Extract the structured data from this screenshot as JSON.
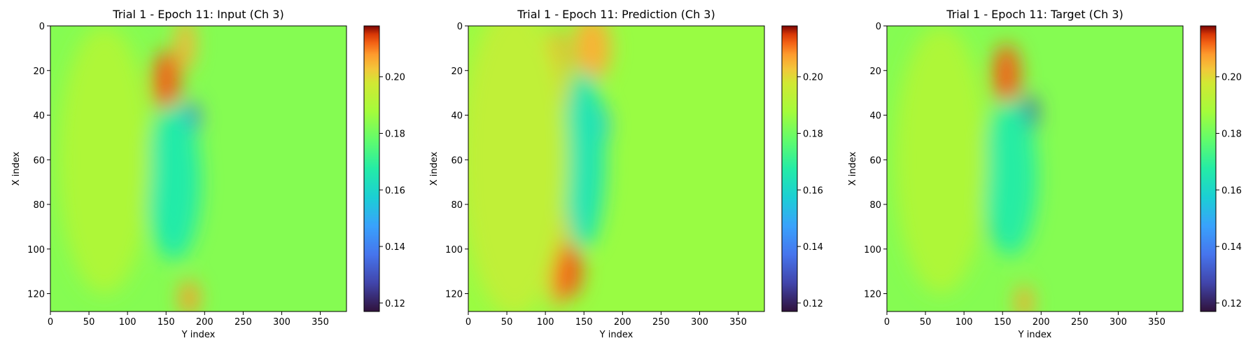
{
  "chart_data": [
    {
      "type": "heatmap",
      "title": "Trial 1 - Epoch 11: Input (Ch 3)",
      "xlabel": "Y index",
      "ylabel": "X index",
      "xlim": [
        0,
        384
      ],
      "ylim": [
        128,
        0
      ],
      "xticks": [
        0,
        50,
        100,
        150,
        200,
        250,
        300,
        350
      ],
      "yticks": [
        0,
        20,
        40,
        60,
        80,
        100,
        120
      ],
      "colorbar": {
        "colormap": "turbo",
        "range": [
          0.117,
          0.218
        ],
        "ticks": [
          "0.12",
          "0.14",
          "0.16",
          "0.18",
          "0.20"
        ]
      },
      "background_value": 0.183,
      "features": [
        {
          "y": 150,
          "x": 25,
          "ry": 18,
          "rx": 14,
          "value": 0.212
        },
        {
          "y": 175,
          "x": 8,
          "ry": 12,
          "rx": 12,
          "value": 0.205
        },
        {
          "y": 183,
          "x": 42,
          "ry": 10,
          "rx": 8,
          "value": 0.135
        },
        {
          "y": 150,
          "x": 92,
          "ry": 10,
          "rx": 10,
          "value": 0.14
        },
        {
          "y": 160,
          "x": 70,
          "ry": 35,
          "rx": 35,
          "value": 0.167
        },
        {
          "y": 180,
          "x": 122,
          "ry": 12,
          "rx": 8,
          "value": 0.208
        },
        {
          "y": 70,
          "x": 60,
          "ry": 60,
          "rx": 60,
          "value": 0.19
        }
      ]
    },
    {
      "type": "heatmap",
      "title": "Trial 1 - Epoch 11: Prediction (Ch 3)",
      "xlabel": "Y index",
      "ylabel": "X index",
      "xlim": [
        0,
        384
      ],
      "ylim": [
        128,
        0
      ],
      "xticks": [
        0,
        50,
        100,
        150,
        200,
        250,
        300,
        350
      ],
      "yticks": [
        0,
        20,
        40,
        60,
        80,
        100,
        120
      ],
      "colorbar": {
        "colormap": "turbo",
        "range": [
          0.117,
          0.218
        ],
        "ticks": [
          "0.12",
          "0.14",
          "0.16",
          "0.18",
          "0.20"
        ]
      },
      "background_value": 0.186,
      "features": [
        {
          "y": 115,
          "x": 64,
          "ry": 15,
          "rx": 64,
          "value": 0.208
        },
        {
          "y": 160,
          "x": 10,
          "ry": 25,
          "rx": 15,
          "value": 0.205
        },
        {
          "y": 170,
          "x": 45,
          "ry": 12,
          "rx": 10,
          "value": 0.152
        },
        {
          "y": 150,
          "x": 90,
          "ry": 8,
          "rx": 8,
          "value": 0.152
        },
        {
          "y": 150,
          "x": 60,
          "ry": 28,
          "rx": 40,
          "value": 0.165
        },
        {
          "y": 60,
          "x": 60,
          "ry": 70,
          "rx": 70,
          "value": 0.194
        },
        {
          "y": 130,
          "x": 110,
          "ry": 18,
          "rx": 12,
          "value": 0.212
        }
      ]
    },
    {
      "type": "heatmap",
      "title": "Trial 1 - Epoch 11: Target (Ch 3)",
      "xlabel": "Y index",
      "ylabel": "X index",
      "xlim": [
        0,
        384
      ],
      "ylim": [
        128,
        0
      ],
      "xticks": [
        0,
        50,
        100,
        150,
        200,
        250,
        300,
        350
      ],
      "yticks": [
        0,
        20,
        40,
        60,
        80,
        100,
        120
      ],
      "colorbar": {
        "colormap": "turbo",
        "range": [
          0.117,
          0.218
        ],
        "ticks": [
          "0.12",
          "0.14",
          "0.16",
          "0.18",
          "0.20"
        ]
      },
      "background_value": 0.183,
      "features": [
        {
          "y": 155,
          "x": 22,
          "ry": 18,
          "rx": 14,
          "value": 0.212
        },
        {
          "y": 185,
          "x": 40,
          "ry": 10,
          "rx": 9,
          "value": 0.128
        },
        {
          "y": 140,
          "x": 88,
          "ry": 9,
          "rx": 8,
          "value": 0.125
        },
        {
          "y": 160,
          "x": 68,
          "ry": 35,
          "rx": 35,
          "value": 0.168
        },
        {
          "y": 178,
          "x": 124,
          "ry": 10,
          "rx": 8,
          "value": 0.207
        },
        {
          "y": 70,
          "x": 60,
          "ry": 60,
          "rx": 60,
          "value": 0.19
        }
      ]
    }
  ]
}
